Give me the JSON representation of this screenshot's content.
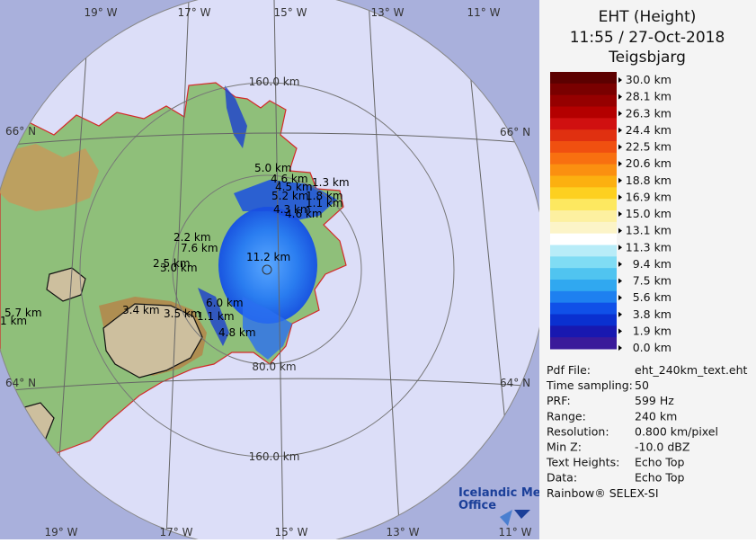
{
  "map": {
    "longitude_labels_top": [
      "19° W",
      "17° W",
      "15° W",
      "13° W",
      "11° W"
    ],
    "longitude_labels_bottom": [
      "19° W",
      "17° W",
      "15° W",
      "13° W",
      "11° W"
    ],
    "latitude_labels": [
      "66° N",
      "66° N",
      "64° N",
      "64° N"
    ],
    "range_labels": [
      "160.0 km",
      "80.0 km",
      "160.0 km"
    ],
    "echo_labels": [
      "5.0 km",
      "4.6 km",
      "1.3 km",
      "4.5 km",
      "5.2 km",
      "1.8 km",
      "1.1 km",
      "4.3 km",
      "4.6 km",
      "2.2 km",
      "7.6 km",
      "11.2 km",
      "2.5 km",
      "3.0 km",
      "3.4 km",
      "3.5 km",
      "6.0 km",
      "1.1 km",
      "4.8 km",
      "5.7 km",
      "1 km"
    ]
  },
  "logo": {
    "line1": "Icelandic Met",
    "line2": "Office"
  },
  "panel": {
    "title": "EHT (Height)",
    "time": "11:55 / 27-Oct-2018",
    "site": "Teigsbjarg",
    "scale_labels": [
      "30.0 km",
      "28.1 km",
      "26.3 km",
      "24.4 km",
      "22.5 km",
      "20.6 km",
      "18.8 km",
      "16.9 km",
      "15.0 km",
      "13.1 km",
      "11.3 km",
      "9.4 km",
      "7.5 km",
      "5.6 km",
      "3.8 km",
      "1.9 km",
      "0.0 km"
    ],
    "info": [
      [
        "Pdf File:",
        "eht_240km_text.eht"
      ],
      [
        "Time sampling:",
        "50"
      ],
      [
        "PRF:",
        "599 Hz"
      ],
      [
        "Range:",
        "240 km"
      ],
      [
        "Resolution:",
        "0.800 km/pixel"
      ],
      [
        "Min Z:",
        "-10.0 dBZ"
      ],
      [
        "Text Heights:",
        "Echo Top"
      ],
      [
        "Data:",
        "Echo Top"
      ]
    ],
    "software": "Rainbow® SELEX-SI"
  }
}
